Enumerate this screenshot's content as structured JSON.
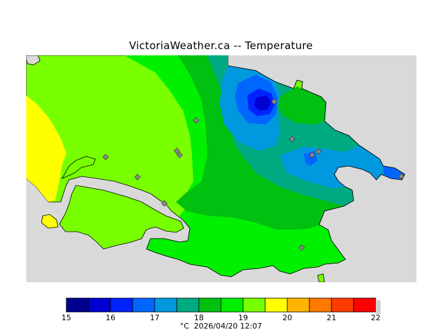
{
  "map": {
    "title": "VictoriaWeather.ca -- Temperature",
    "units": "°C",
    "timestamp": "2026/04/20 12:07"
  },
  "legend": {
    "colors": [
      "#000090",
      "#0000d0",
      "#0022ff",
      "#0066ff",
      "#0099e0",
      "#00aa80",
      "#00c010",
      "#00f000",
      "#78ff00",
      "#ffff00",
      "#ffb400",
      "#ff7800",
      "#ff3c00",
      "#ff0000"
    ],
    "ticks": [
      "15",
      "16",
      "17",
      "18",
      "19",
      "20",
      "21",
      "22"
    ]
  },
  "colors": {
    "land_out_of_area": "#d9d9d9",
    "coastline": "#000000",
    "station_marker": "#8a8a8a"
  },
  "stations": [
    {
      "id": "station-1"
    },
    {
      "id": "station-2"
    },
    {
      "id": "station-3"
    },
    {
      "id": "station-4"
    },
    {
      "id": "station-5"
    },
    {
      "id": "station-6"
    },
    {
      "id": "station-7"
    },
    {
      "id": "station-8"
    },
    {
      "id": "station-9"
    },
    {
      "id": "station-10"
    },
    {
      "id": "station-11"
    },
    {
      "id": "station-12"
    }
  ]
}
